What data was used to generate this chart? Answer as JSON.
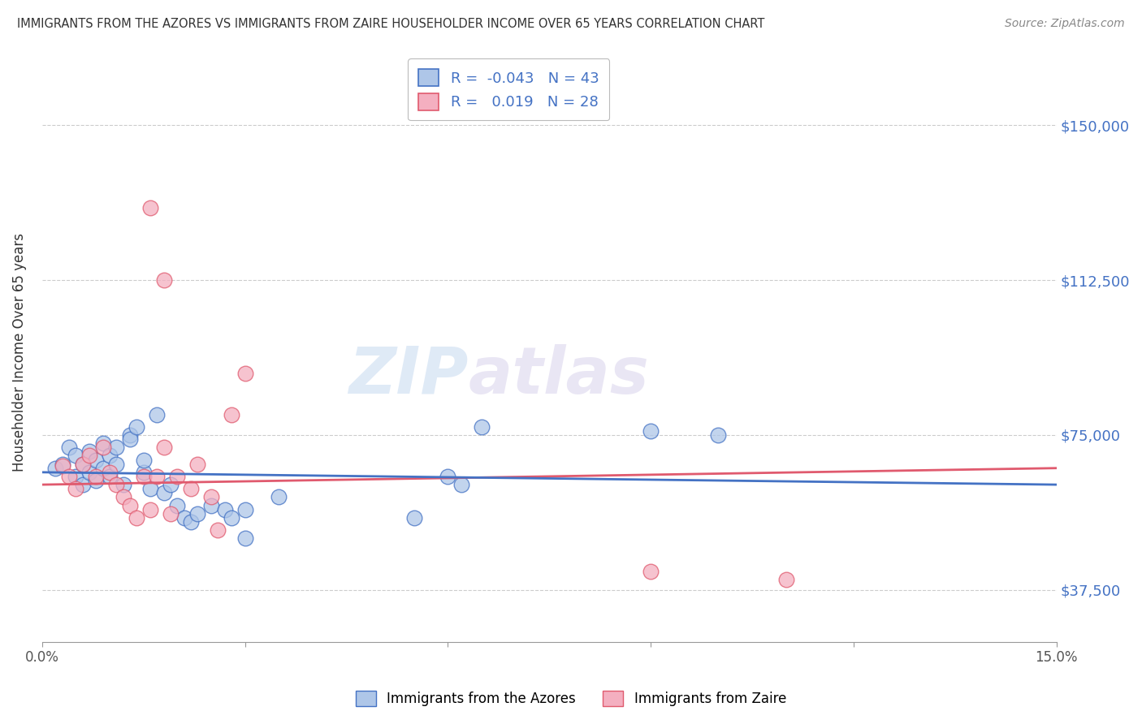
{
  "title": "IMMIGRANTS FROM THE AZORES VS IMMIGRANTS FROM ZAIRE HOUSEHOLDER INCOME OVER 65 YEARS CORRELATION CHART",
  "source": "Source: ZipAtlas.com",
  "ylabel": "Householder Income Over 65 years",
  "y_ticks": [
    37500,
    75000,
    112500,
    150000
  ],
  "y_tick_labels": [
    "$37,500",
    "$75,000",
    "$112,500",
    "$150,000"
  ],
  "xlim": [
    0.0,
    0.15
  ],
  "ylim": [
    25000,
    165000
  ],
  "r_azores": -0.043,
  "n_azores": 43,
  "r_zaire": 0.019,
  "n_zaire": 28,
  "color_azores": "#aec6e8",
  "color_zaire": "#f4afc0",
  "line_color_azores": "#4472c4",
  "line_color_zaire": "#e05a6e",
  "watermark_zip": "ZIP",
  "watermark_atlas": "atlas",
  "azores_points": [
    [
      0.002,
      67000
    ],
    [
      0.003,
      68000
    ],
    [
      0.004,
      72000
    ],
    [
      0.005,
      65000
    ],
    [
      0.005,
      70000
    ],
    [
      0.006,
      68000
    ],
    [
      0.006,
      63000
    ],
    [
      0.007,
      66000
    ],
    [
      0.007,
      71000
    ],
    [
      0.008,
      69000
    ],
    [
      0.008,
      64000
    ],
    [
      0.009,
      67000
    ],
    [
      0.009,
      73000
    ],
    [
      0.01,
      70000
    ],
    [
      0.01,
      65000
    ],
    [
      0.011,
      68000
    ],
    [
      0.011,
      72000
    ],
    [
      0.012,
      63000
    ],
    [
      0.013,
      75000
    ],
    [
      0.013,
      74000
    ],
    [
      0.014,
      77000
    ],
    [
      0.015,
      66000
    ],
    [
      0.015,
      69000
    ],
    [
      0.016,
      62000
    ],
    [
      0.017,
      80000
    ],
    [
      0.018,
      61000
    ],
    [
      0.019,
      63000
    ],
    [
      0.02,
      58000
    ],
    [
      0.021,
      55000
    ],
    [
      0.022,
      54000
    ],
    [
      0.023,
      56000
    ],
    [
      0.025,
      58000
    ],
    [
      0.027,
      57000
    ],
    [
      0.028,
      55000
    ],
    [
      0.03,
      50000
    ],
    [
      0.03,
      57000
    ],
    [
      0.035,
      60000
    ],
    [
      0.055,
      55000
    ],
    [
      0.06,
      65000
    ],
    [
      0.062,
      63000
    ],
    [
      0.065,
      77000
    ],
    [
      0.09,
      76000
    ],
    [
      0.1,
      75000
    ]
  ],
  "zaire_points": [
    [
      0.003,
      67500
    ],
    [
      0.004,
      65000
    ],
    [
      0.005,
      62000
    ],
    [
      0.006,
      68000
    ],
    [
      0.007,
      70000
    ],
    [
      0.008,
      65000
    ],
    [
      0.009,
      72000
    ],
    [
      0.01,
      66000
    ],
    [
      0.011,
      63000
    ],
    [
      0.012,
      60000
    ],
    [
      0.013,
      58000
    ],
    [
      0.014,
      55000
    ],
    [
      0.015,
      65000
    ],
    [
      0.016,
      57000
    ],
    [
      0.017,
      65000
    ],
    [
      0.018,
      72000
    ],
    [
      0.019,
      56000
    ],
    [
      0.02,
      65000
    ],
    [
      0.022,
      62000
    ],
    [
      0.023,
      68000
    ],
    [
      0.025,
      60000
    ],
    [
      0.026,
      52000
    ],
    [
      0.028,
      80000
    ],
    [
      0.03,
      90000
    ],
    [
      0.016,
      130000
    ],
    [
      0.018,
      112500
    ],
    [
      0.09,
      42000
    ],
    [
      0.11,
      40000
    ]
  ],
  "background_color": "#ffffff",
  "grid_color": "#cccccc",
  "title_color": "#333333",
  "tick_color_right": "#4472c4"
}
